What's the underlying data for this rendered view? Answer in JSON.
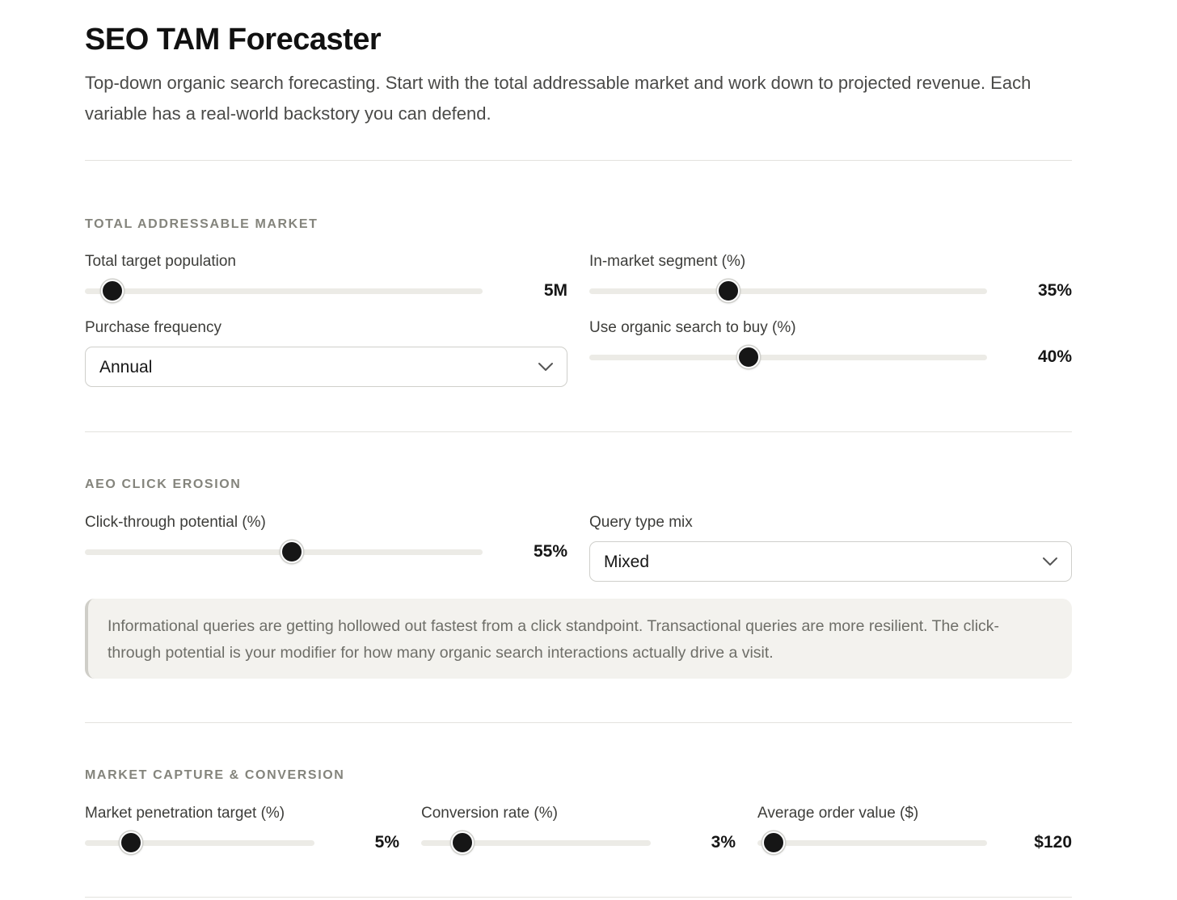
{
  "header": {
    "title": "SEO TAM Forecaster",
    "subtitle": "Top-down organic search forecasting. Start with the total addressable market and work down to projected revenue. Each variable has a real-world backstory you can defend."
  },
  "tam": {
    "section_label": "TOTAL ADDRESSABLE MARKET",
    "population": {
      "label": "Total target population",
      "value": "5M",
      "level": 0.07
    },
    "in_market": {
      "label": "In-market segment (%)",
      "value": "35%",
      "level": 0.35
    },
    "frequency": {
      "label": "Purchase frequency",
      "selected": "Annual"
    },
    "organic": {
      "label": "Use organic search to buy (%)",
      "value": "40%",
      "level": 0.4
    }
  },
  "aeo": {
    "section_label": "AEO CLICK EROSION",
    "ctr": {
      "label": "Click-through potential (%)",
      "value": "55%",
      "level": 0.52
    },
    "query_mix": {
      "label": "Query type mix",
      "selected": "Mixed"
    },
    "note": "Informational queries are getting hollowed out fastest from a click standpoint. Transactional queries are more resilient. The click-through potential is your modifier for how many organic search interactions actually drive a visit."
  },
  "capture": {
    "section_label": "MARKET CAPTURE & CONVERSION",
    "penetration": {
      "label": "Market penetration target (%)",
      "value": "5%",
      "level": 0.2
    },
    "conversion": {
      "label": "Conversion rate (%)",
      "value": "3%",
      "level": 0.18
    },
    "aov": {
      "label": "Average order value ($)",
      "value": "$120",
      "level": 0.07
    }
  },
  "colors": {
    "thumb": "#161616",
    "track": "#ecebe6",
    "note_bg": "#f3f2ee",
    "section_label": "#84847c"
  }
}
